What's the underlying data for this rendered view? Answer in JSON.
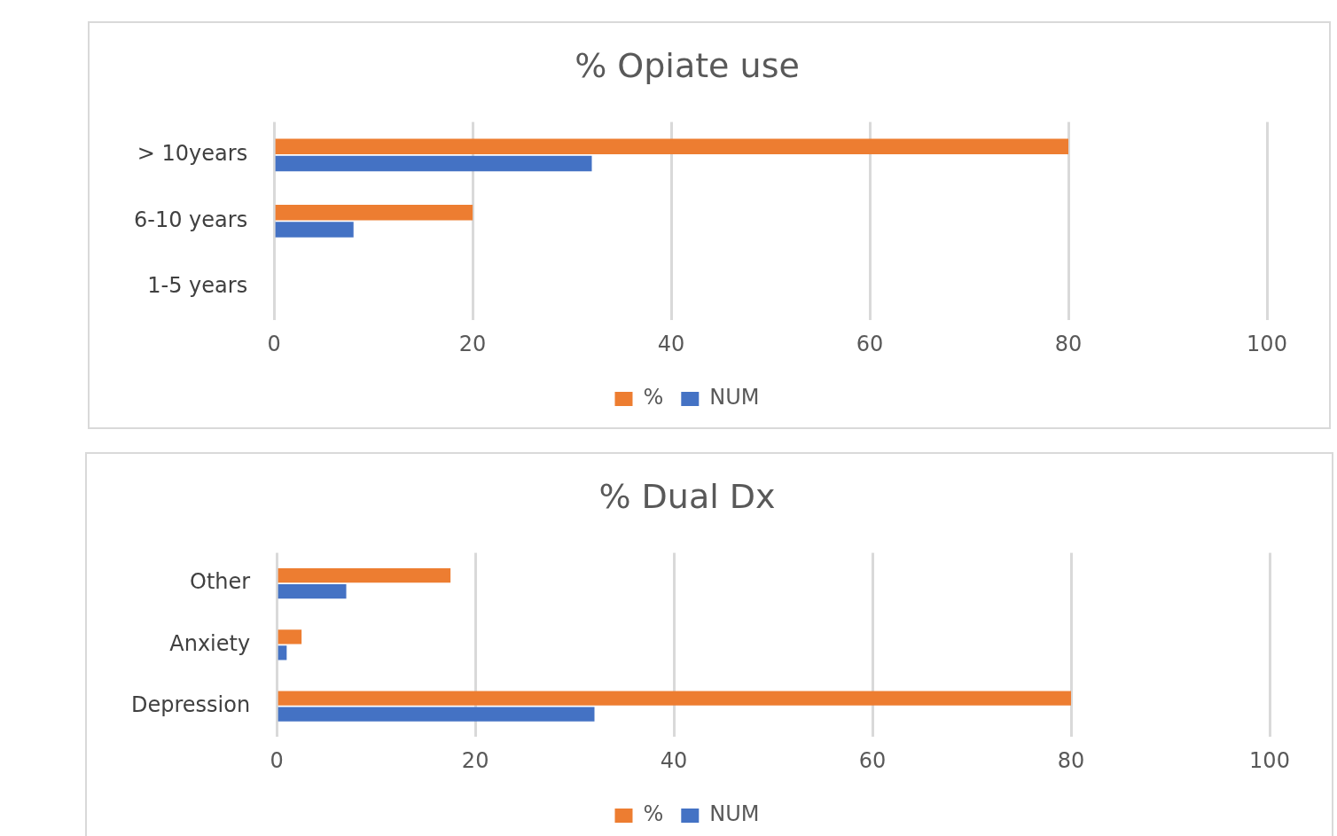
{
  "chart_data": [
    {
      "type": "bar",
      "title": "% Opiate use",
      "orientation": "horizontal",
      "categories": [
        "> 10years",
        "6-10 years",
        "1-5 years"
      ],
      "series": [
        {
          "name": "%",
          "color": "#ed7d31",
          "values": [
            80,
            20,
            0
          ]
        },
        {
          "name": "NUM",
          "color": "#4472c4",
          "values": [
            32,
            8,
            0
          ]
        }
      ],
      "xlim": [
        0,
        100
      ],
      "xticks": [
        0,
        20,
        40,
        60,
        80,
        100
      ],
      "grid": "x",
      "legend": "bottom"
    },
    {
      "type": "bar",
      "title": "% Dual Dx",
      "orientation": "horizontal",
      "categories": [
        "Other",
        "Anxiety",
        "Depression"
      ],
      "series": [
        {
          "name": "%",
          "color": "#ed7d31",
          "values": [
            17.5,
            2.5,
            80
          ]
        },
        {
          "name": "NUM",
          "color": "#4472c4",
          "values": [
            7,
            1,
            32
          ]
        }
      ],
      "xlim": [
        0,
        100
      ],
      "xticks": [
        0,
        20,
        40,
        60,
        80,
        100
      ],
      "grid": "x",
      "legend": "bottom"
    }
  ]
}
